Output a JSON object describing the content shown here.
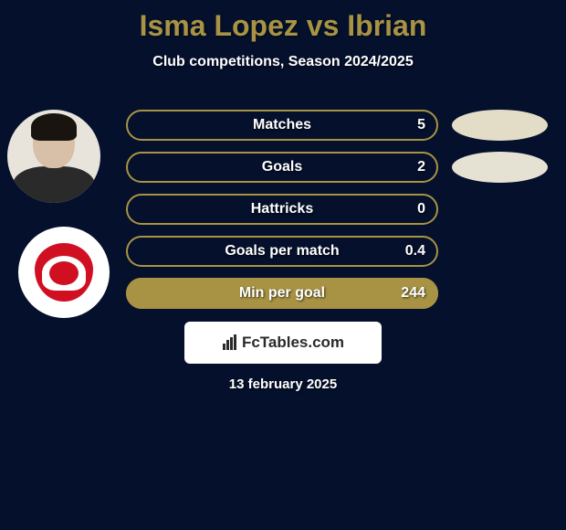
{
  "title": "Isma Lopez vs Ibrian",
  "subtitle": "Club competitions, Season 2024/2025",
  "colors": {
    "background": "#04102c",
    "accent": "#a89344",
    "blob1": "#e3ddc7",
    "blob2": "#e6e2d3",
    "white": "#ffffff"
  },
  "stats": [
    {
      "label": "Matches",
      "value": "5",
      "fill_width": 0,
      "fill_color": "#a89344"
    },
    {
      "label": "Goals",
      "value": "2",
      "fill_width": 0,
      "fill_color": "#a89344"
    },
    {
      "label": "Hattricks",
      "value": "0",
      "fill_width": 0,
      "fill_color": "#a89344"
    },
    {
      "label": "Goals per match",
      "value": "0.4",
      "fill_width": 0,
      "fill_color": "#a89344"
    },
    {
      "label": "Min per goal",
      "value": "244",
      "fill_width": 342,
      "fill_color": "#a89344"
    }
  ],
  "right_blobs": [
    {
      "color": "#e3ddc7",
      "row": 0
    },
    {
      "color": "#e6e2d3",
      "row": 1
    }
  ],
  "site_logo": {
    "icon_name": "bar-chart-icon",
    "text": "FcTables.com"
  },
  "footer_date": "13 february 2025"
}
